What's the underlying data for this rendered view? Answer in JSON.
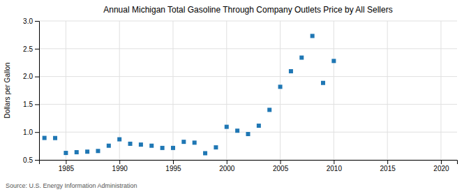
{
  "chart_data": {
    "type": "scatter",
    "title": "Annual Michigan Total Gasoline Through Company Outlets Price by All Sellers",
    "ylabel": "Dollars per Gallon",
    "annotations": [
      "Source: U.S. Energy Information Administration"
    ],
    "x": [
      1983,
      1984,
      1985,
      1986,
      1987,
      1988,
      1989,
      1990,
      1991,
      1992,
      1993,
      1994,
      1995,
      1996,
      1997,
      1998,
      1999,
      2000,
      2001,
      2002,
      2003,
      2004,
      2005,
      2006,
      2007,
      2008,
      2009,
      2010
    ],
    "values": [
      0.895,
      0.893,
      0.625,
      0.638,
      0.648,
      0.66,
      0.755,
      0.87,
      0.79,
      0.775,
      0.755,
      0.715,
      0.715,
      0.825,
      0.81,
      0.62,
      0.725,
      1.095,
      1.025,
      0.965,
      1.115,
      1.4,
      1.815,
      2.095,
      2.34,
      2.73,
      1.885,
      2.28
    ],
    "xlim": [
      1982.5,
      2021.5
    ],
    "ylim": [
      0.5,
      3.0
    ],
    "xticks": [
      1985,
      1990,
      1995,
      2000,
      2005,
      2010,
      2015,
      2020
    ],
    "yticks": [
      0.5,
      {
        "value": 1.0,
        "label": "1.0"
      },
      1.5,
      {
        "value": 2.0,
        "label": "2.0"
      },
      2.5,
      {
        "value": 3.0,
        "label": "3.0"
      }
    ],
    "grid": true,
    "marker": "square"
  }
}
